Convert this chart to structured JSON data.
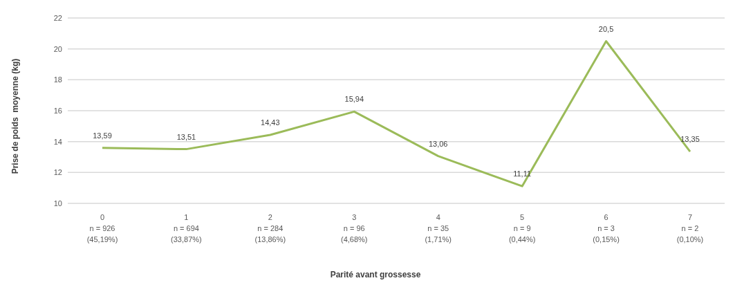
{
  "chart_data": {
    "type": "line",
    "xlabel": "Parité avant grossesse",
    "ylabel": "Prise de poids  moyenne (kg)",
    "categories": [
      "0\nn = 926\n(45,19%)",
      "1\nn = 694\n(33,87%)",
      "2\nn = 284\n(13,86%)",
      "3\nn = 96\n(4,68%)",
      "4\nn = 35\n(1,71%)",
      "5\nn = 9\n(0,44%)",
      "6\nn = 3\n(0,15%)",
      "7\nn = 2\n(0,10%)"
    ],
    "values": [
      13.59,
      13.51,
      14.43,
      15.94,
      13.06,
      11.11,
      20.5,
      13.35
    ],
    "value_labels": [
      "13,59",
      "13,51",
      "14,43",
      "15,94",
      "13,06",
      "11,11",
      "20,5",
      "13,35"
    ],
    "color": "#9bbb59",
    "ylim": [
      10,
      22
    ],
    "yticks": [
      10,
      12,
      14,
      16,
      18,
      20,
      22
    ],
    "grid": "y",
    "marker": "none",
    "line_style": "solid"
  }
}
